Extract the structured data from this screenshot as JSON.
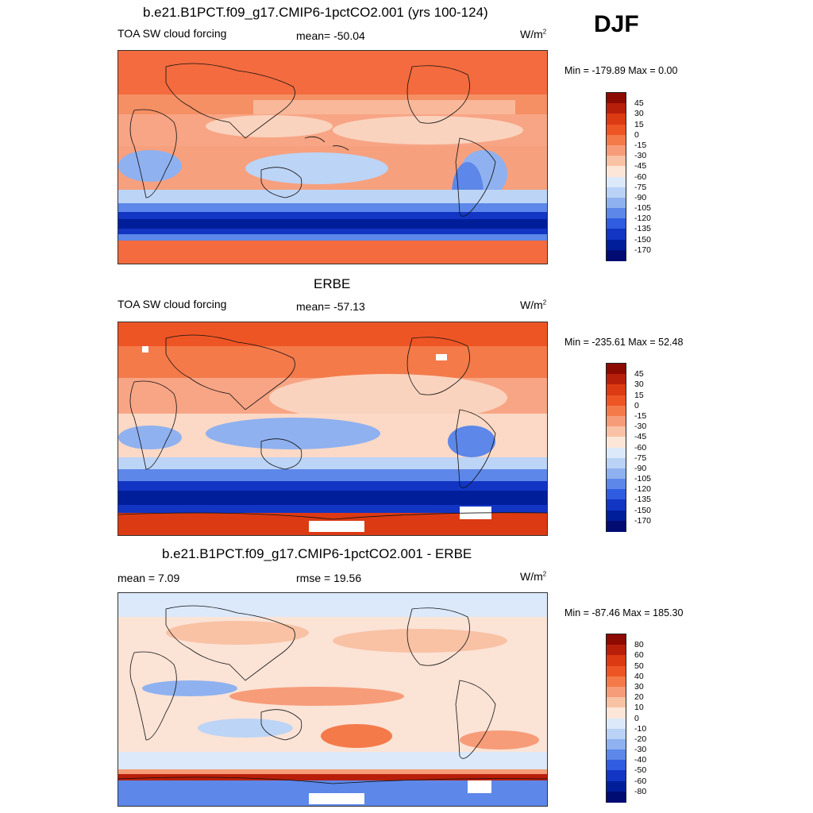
{
  "season": "DJF",
  "panels": [
    {
      "title": "b.e21.B1PCT.f09_g17.CMIP6-1pctCO2.001 (yrs 100-124)",
      "left_text": "TOA SW cloud forcing",
      "center_text": "mean= -50.04",
      "units": "W/m",
      "units_exp": "2",
      "minmax": "Min = -179.89 Max =    0.00",
      "colorbar_labels": [
        "45",
        "30",
        "15",
        "0",
        "-15",
        "-30",
        "-45",
        "-60",
        "-75",
        "-90",
        "-105",
        "-120",
        "-135",
        "-150",
        "-170"
      ]
    },
    {
      "title": "ERBE",
      "left_text": "TOA SW cloud forcing",
      "center_text": "mean= -57.13",
      "units": "W/m",
      "units_exp": "2",
      "minmax": "Min = -235.61 Max =  52.48",
      "colorbar_labels": [
        "45",
        "30",
        "15",
        "0",
        "-15",
        "-30",
        "-45",
        "-60",
        "-75",
        "-90",
        "-105",
        "-120",
        "-135",
        "-150",
        "-170"
      ]
    },
    {
      "title": "b.e21.B1PCT.f09_g17.CMIP6-1pctCO2.001 - ERBE",
      "left_text": "mean =   7.09",
      "center_text": "rmse =  19.56",
      "units": "W/m",
      "units_exp": "2",
      "minmax": "Min = -87.46 Max = 185.30",
      "colorbar_labels": [
        "80",
        "60",
        "50",
        "40",
        "30",
        "20",
        "10",
        "0",
        "-10",
        "-20",
        "-30",
        "-40",
        "-50",
        "-60",
        "-80"
      ]
    }
  ],
  "colorbar_colors": [
    "#8c0a00",
    "#b81f0a",
    "#dc3a12",
    "#ee5524",
    "#f47a4a",
    "#f79c78",
    "#f9c2a5",
    "#fce6d8",
    "#dbe9fb",
    "#b9d2f6",
    "#8fb1f0",
    "#5d87e8",
    "#2f5ce0",
    "#1235c4",
    "#001e9a",
    "#000c72"
  ],
  "colormap": {
    "sea_base_top": "#f36b3e",
    "sea_base_diff": "#fbe3d6"
  }
}
